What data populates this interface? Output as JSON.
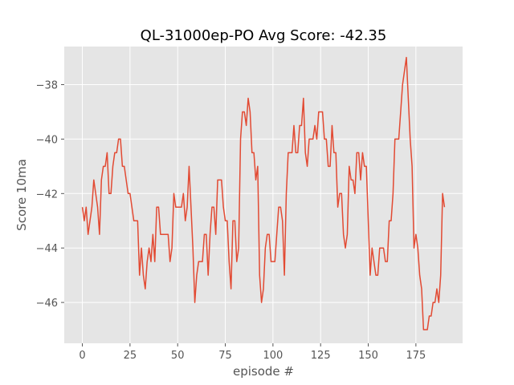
{
  "chart_data": {
    "type": "line",
    "title": "QL-31000ep-PO Avg Score: -42.35",
    "xlabel": "episode #",
    "ylabel": "Score 10ma",
    "xlim": [
      -9.5,
      199.5
    ],
    "ylim": [
      -47.5,
      -36.6
    ],
    "xticks": [
      0,
      25,
      50,
      75,
      100,
      125,
      150,
      175
    ],
    "yticks": [
      -46,
      -44,
      -42,
      -40,
      -38
    ],
    "grid": true,
    "style": "ggplot",
    "colors": {
      "background": "#e5e5e5",
      "grid": "#ffffff",
      "line": "#e24a33"
    },
    "series": [
      {
        "color": "#e24a33",
        "x": [
          0,
          1,
          2,
          3,
          4,
          5,
          6,
          7,
          8,
          9,
          10,
          11,
          12,
          13,
          14,
          15,
          16,
          17,
          18,
          19,
          20,
          21,
          22,
          23,
          24,
          25,
          26,
          27,
          28,
          29,
          30,
          31,
          32,
          33,
          34,
          35,
          36,
          37,
          38,
          39,
          40,
          41,
          42,
          43,
          44,
          45,
          46,
          47,
          48,
          49,
          50,
          51,
          52,
          53,
          54,
          55,
          56,
          57,
          58,
          59,
          60,
          61,
          62,
          63,
          64,
          65,
          66,
          67,
          68,
          69,
          70,
          71,
          72,
          73,
          74,
          75,
          76,
          77,
          78,
          79,
          80,
          81,
          82,
          83,
          84,
          85,
          86,
          87,
          88,
          89,
          90,
          91,
          92,
          93,
          94,
          95,
          96,
          97,
          98,
          99,
          100,
          101,
          102,
          103,
          104,
          105,
          106,
          107,
          108,
          109,
          110,
          111,
          112,
          113,
          114,
          115,
          116,
          117,
          118,
          119,
          120,
          121,
          122,
          123,
          124,
          125,
          126,
          127,
          128,
          129,
          130,
          131,
          132,
          133,
          134,
          135,
          136,
          137,
          138,
          139,
          140,
          141,
          142,
          143,
          144,
          145,
          146,
          147,
          148,
          149,
          150,
          151,
          152,
          153,
          154,
          155,
          156,
          157,
          158,
          159,
          160,
          161,
          162,
          163,
          164,
          165,
          166,
          167,
          168,
          169,
          170,
          171,
          172,
          173,
          174,
          175,
          176,
          177,
          178,
          179,
          180,
          181,
          182,
          183,
          184,
          185,
          186,
          187,
          188,
          189,
          190
        ],
        "values": [
          -42.5,
          -43,
          -42.5,
          -43.5,
          -43,
          -42.5,
          -41.5,
          -42,
          -42.5,
          -43.5,
          -41.5,
          -41,
          -41,
          -40.5,
          -42,
          -42,
          -41,
          -40.5,
          -40.5,
          -40,
          -40,
          -41,
          -41,
          -41.5,
          -42,
          -42,
          -42.5,
          -43,
          -43,
          -43,
          -45,
          -44,
          -45,
          -45.5,
          -44.5,
          -44,
          -44.5,
          -43.5,
          -44.5,
          -42.5,
          -42.5,
          -43.5,
          -43.5,
          -43.5,
          -43.5,
          -43.5,
          -44.5,
          -44,
          -42,
          -42.5,
          -42.5,
          -42.5,
          -42.5,
          -42,
          -43,
          -42.5,
          -41,
          -42.5,
          -44,
          -46,
          -45,
          -44.5,
          -44.5,
          -44.5,
          -43.5,
          -43.5,
          -45,
          -43.5,
          -42.5,
          -42.5,
          -43.5,
          -41.5,
          -41.5,
          -41.5,
          -42.5,
          -43,
          -43,
          -44.5,
          -45.5,
          -43,
          -43,
          -44.5,
          -44,
          -40,
          -39,
          -39,
          -39.5,
          -38.5,
          -39,
          -40.5,
          -40.5,
          -41.5,
          -41,
          -45,
          -46,
          -45.5,
          -44,
          -43.5,
          -43.5,
          -44.5,
          -44.5,
          -44.5,
          -43.5,
          -42.5,
          -42.5,
          -43,
          -45,
          -42,
          -40.5,
          -40.5,
          -40.5,
          -39.5,
          -40.5,
          -40.5,
          -39.5,
          -39.5,
          -38.5,
          -40.5,
          -41,
          -40,
          -40,
          -40,
          -39.5,
          -40,
          -39,
          -39,
          -39,
          -40,
          -40,
          -41,
          -41,
          -39.5,
          -40.5,
          -40.5,
          -42.5,
          -42,
          -42,
          -43.5,
          -44,
          -43.5,
          -41,
          -41.5,
          -41.5,
          -42,
          -40.5,
          -40.5,
          -41.5,
          -40.5,
          -41,
          -41,
          -43,
          -45,
          -44,
          -44.5,
          -45,
          -45,
          -44,
          -44,
          -44,
          -44.5,
          -44.5,
          -43,
          -43,
          -42,
          -40,
          -40,
          -40,
          -39,
          -38,
          -37.5,
          -37,
          -38.5,
          -40,
          -41,
          -44,
          -43.5,
          -44,
          -45,
          -45.5,
          -47,
          -47,
          -47,
          -46.5,
          -46.5,
          -46,
          -46,
          -45.5,
          -46,
          -45,
          -42,
          -42.5
        ]
      }
    ]
  }
}
